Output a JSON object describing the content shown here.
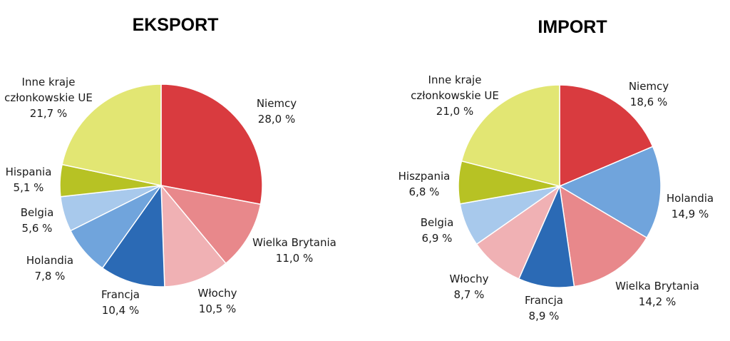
{
  "chart_data": [
    {
      "type": "pie",
      "title": "EKSPORT",
      "unit": "%",
      "slices": [
        {
          "name": "Niemcy",
          "value": 28.0,
          "value_label": "28,0 %",
          "color": "#d93b3f"
        },
        {
          "name": "Wielka Brytania",
          "value": 11.0,
          "value_label": "11,0 %",
          "color": "#e8888b"
        },
        {
          "name": "Włochy",
          "value": 10.5,
          "value_label": "10,5 %",
          "color": "#f0b1b4"
        },
        {
          "name": "Francja",
          "value": 10.4,
          "value_label": "10,4 %",
          "color": "#2b6ab5"
        },
        {
          "name": "Holandia",
          "value": 7.8,
          "value_label": "7,8 %",
          "color": "#70a4dc"
        },
        {
          "name": "Belgia",
          "value": 5.6,
          "value_label": "5,6 %",
          "color": "#a8c9ec"
        },
        {
          "name": "Hispania",
          "value": 5.1,
          "value_label": "5,1 %",
          "color": "#b7c224"
        },
        {
          "name": "Inne kraje członkowskie UE",
          "value": 21.7,
          "value_label": "21,7 %",
          "color": "#e2e673"
        }
      ]
    },
    {
      "type": "pie",
      "title": "IMPORT",
      "unit": "%",
      "slices": [
        {
          "name": "Niemcy",
          "value": 18.6,
          "value_label": "18,6 %",
          "color": "#d93b3f"
        },
        {
          "name": "Holandia",
          "value": 14.9,
          "value_label": "14,9 %",
          "color": "#70a4dc"
        },
        {
          "name": "Wielka Brytania",
          "value": 14.2,
          "value_label": "14,2 %",
          "color": "#e8888b"
        },
        {
          "name": "Francja",
          "value": 8.9,
          "value_label": "8,9 %",
          "color": "#2b6ab5"
        },
        {
          "name": "Włochy",
          "value": 8.7,
          "value_label": "8,7 %",
          "color": "#f0b1b4"
        },
        {
          "name": "Belgia",
          "value": 6.9,
          "value_label": "6,9 %",
          "color": "#a8c9ec"
        },
        {
          "name": "Hiszpania",
          "value": 6.8,
          "value_label": "6,8 %",
          "color": "#b7c224"
        },
        {
          "name": "Inne kraje członkowskie UE",
          "value": 21.0,
          "value_label": "21,0 %",
          "color": "#e2e673"
        }
      ]
    }
  ]
}
